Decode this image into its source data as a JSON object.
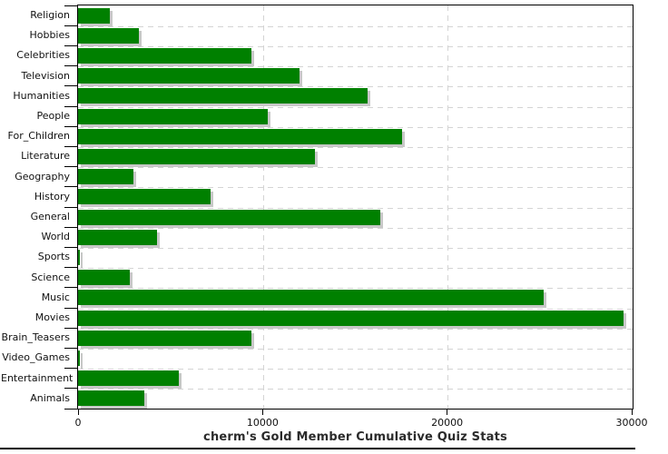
{
  "chart_data": {
    "type": "bar",
    "orientation": "horizontal",
    "title": "cherm's Gold Member Cumulative Quiz Stats",
    "categories": [
      "Religion",
      "Hobbies",
      "Celebrities",
      "Television",
      "Humanities",
      "People",
      "For_Children",
      "Literature",
      "Geography",
      "History",
      "General",
      "World",
      "Sports",
      "Science",
      "Music",
      "Movies",
      "Brain_Teasers",
      "Video_Games",
      "Entertainment",
      "Animals"
    ],
    "values": [
      1740,
      3310,
      9380,
      12000,
      15690,
      10280,
      17540,
      12820,
      2990,
      7170,
      16390,
      4260,
      110,
      2790,
      25250,
      29540,
      9410,
      80,
      5470,
      3590
    ],
    "xlabel": "",
    "ylabel": "",
    "xlim": [
      0,
      30000
    ],
    "x_ticks": [
      0,
      10000,
      20000,
      30000
    ],
    "x_tick_labels": [
      "0",
      "10000",
      "20000",
      "30000"
    ],
    "grid": "dashed row separators and dashed vertical lines at x ticks",
    "legend": "none",
    "colors": {
      "bar": "#008000",
      "bar_shadow": "#c8c8c8",
      "grid": "#d4d4d4",
      "axis": "#000000",
      "tick_text": "#111111",
      "title_text": "#2b2b2b",
      "background": "#ffffff"
    }
  }
}
